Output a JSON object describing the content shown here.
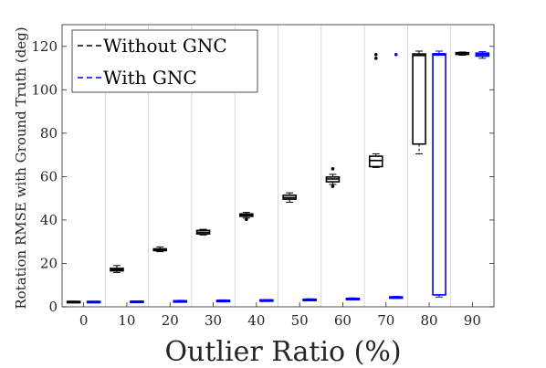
{
  "chart_data": {
    "type": "boxplot",
    "xlabel": "Outlier Ratio (%)",
    "ylabel": "Rotation RMSE with Ground Truth (deg)",
    "categories": [
      "0",
      "10",
      "20",
      "30",
      "40",
      "50",
      "60",
      "70",
      "80",
      "90"
    ],
    "ylim": [
      0,
      130
    ],
    "yticks": [
      0,
      20,
      40,
      60,
      80,
      100,
      120
    ],
    "grid": "vertical",
    "legend_position": "top-left",
    "series": [
      {
        "name": "Without GNC",
        "color": "#000000",
        "boxes": [
          {
            "min": 2.3,
            "q1": 2.3,
            "median": 2.4,
            "q3": 2.5,
            "max": 2.6,
            "outliers": []
          },
          {
            "min": 15.8,
            "q1": 16.6,
            "median": 17.1,
            "q3": 17.7,
            "max": 19.0,
            "outliers": []
          },
          {
            "min": 25.4,
            "q1": 25.9,
            "median": 26.3,
            "q3": 26.7,
            "max": 27.6,
            "outliers": []
          },
          {
            "min": 33.1,
            "q1": 33.6,
            "median": 34.3,
            "q3": 35.2,
            "max": 35.7,
            "outliers": []
          },
          {
            "min": 40.9,
            "q1": 41.7,
            "median": 42.2,
            "q3": 42.8,
            "max": 43.5,
            "outliers": [
              40.3
            ]
          },
          {
            "min": 48.2,
            "q1": 49.6,
            "median": 50.3,
            "q3": 51.4,
            "max": 52.5,
            "outliers": []
          },
          {
            "min": 56.4,
            "q1": 57.6,
            "median": 58.9,
            "q3": 59.8,
            "max": 61.0,
            "outliers": [
              55.5,
              63.6
            ]
          },
          {
            "min": 64.2,
            "q1": 64.6,
            "median": 67.4,
            "q3": 69.4,
            "max": 70.5,
            "outliers": [
              114.5,
              116.2
            ]
          },
          {
            "min": 70.5,
            "q1": 75.0,
            "median": 115.8,
            "q3": 116.5,
            "max": 117.8,
            "outliers": []
          },
          {
            "min": 115.9,
            "q1": 116.3,
            "median": 116.7,
            "q3": 117.1,
            "max": 117.4,
            "outliers": []
          }
        ]
      },
      {
        "name": "With GNC",
        "color": "#0000ff",
        "boxes": [
          {
            "min": 2.2,
            "q1": 2.3,
            "median": 2.4,
            "q3": 2.5,
            "max": 2.6,
            "outliers": []
          },
          {
            "min": 2.3,
            "q1": 2.4,
            "median": 2.5,
            "q3": 2.6,
            "max": 2.7,
            "outliers": []
          },
          {
            "min": 2.4,
            "q1": 2.6,
            "median": 2.7,
            "q3": 2.8,
            "max": 3.0,
            "outliers": []
          },
          {
            "min": 2.6,
            "q1": 2.8,
            "median": 2.9,
            "q3": 3.0,
            "max": 3.2,
            "outliers": []
          },
          {
            "min": 2.8,
            "q1": 3.0,
            "median": 3.1,
            "q3": 3.2,
            "max": 3.3,
            "outliers": []
          },
          {
            "min": 3.1,
            "q1": 3.3,
            "median": 3.4,
            "q3": 3.5,
            "max": 3.7,
            "outliers": []
          },
          {
            "min": 3.4,
            "q1": 3.6,
            "median": 3.8,
            "q3": 3.9,
            "max": 4.1,
            "outliers": []
          },
          {
            "min": 3.9,
            "q1": 4.2,
            "median": 4.4,
            "q3": 4.6,
            "max": 4.8,
            "outliers": [
              116.2
            ]
          },
          {
            "min": 4.5,
            "q1": 5.5,
            "median": 116.0,
            "q3": 116.6,
            "max": 117.8,
            "outliers": []
          },
          {
            "min": 114.5,
            "q1": 115.5,
            "median": 116.2,
            "q3": 116.9,
            "max": 117.6,
            "outliers": []
          }
        ]
      }
    ]
  }
}
